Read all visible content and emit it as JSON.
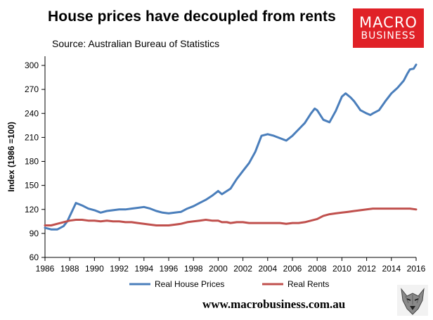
{
  "header": {
    "title": "House prices have decoupled from rents",
    "subtitle": "Source: Australian Bureau of Statistics"
  },
  "logo": {
    "line1": "MACRO",
    "line2": "BUSINESS"
  },
  "footer": {
    "url": "www.macrobusiness.com.au",
    "mascot_icon": "wolf-icon"
  },
  "colors": {
    "house": "#4a7ebb",
    "rents": "#c0504d",
    "axis": "#000000",
    "logo_bg": "#e02127"
  },
  "chart_data": {
    "type": "line",
    "title": "House prices have decoupled from rents",
    "xlabel": "",
    "ylabel": "Index (1986 =100)",
    "xlim": [
      1986,
      2016
    ],
    "ylim": [
      60,
      310
    ],
    "xticks": [
      1986,
      1988,
      1990,
      1992,
      1994,
      1996,
      1998,
      2000,
      2002,
      2004,
      2006,
      2008,
      2010,
      2012,
      2014,
      2016
    ],
    "yticks": [
      60,
      90,
      120,
      150,
      180,
      210,
      240,
      270,
      300
    ],
    "grid": false,
    "legend_position": "bottom",
    "series": [
      {
        "name": "Real House Prices",
        "color": "#4a7ebb",
        "points": [
          [
            1986.0,
            97
          ],
          [
            1986.5,
            95
          ],
          [
            1987.0,
            95
          ],
          [
            1987.5,
            99
          ],
          [
            1987.8,
            105
          ],
          [
            1988.2,
            118
          ],
          [
            1988.5,
            128
          ],
          [
            1989.0,
            125
          ],
          [
            1989.5,
            121
          ],
          [
            1990.0,
            119
          ],
          [
            1990.5,
            116
          ],
          [
            1991.0,
            118
          ],
          [
            1991.5,
            119
          ],
          [
            1992.0,
            120
          ],
          [
            1992.5,
            120
          ],
          [
            1993.0,
            121
          ],
          [
            1993.5,
            122
          ],
          [
            1994.0,
            123
          ],
          [
            1994.5,
            121
          ],
          [
            1995.0,
            118
          ],
          [
            1995.5,
            116
          ],
          [
            1996.0,
            115
          ],
          [
            1996.5,
            116
          ],
          [
            1997.0,
            117
          ],
          [
            1997.5,
            121
          ],
          [
            1998.0,
            124
          ],
          [
            1998.5,
            128
          ],
          [
            1999.0,
            132
          ],
          [
            1999.5,
            137
          ],
          [
            2000.0,
            143
          ],
          [
            2000.3,
            139
          ],
          [
            2000.7,
            143
          ],
          [
            2001.0,
            146
          ],
          [
            2001.5,
            158
          ],
          [
            2002.0,
            168
          ],
          [
            2002.5,
            178
          ],
          [
            2003.0,
            192
          ],
          [
            2003.5,
            212
          ],
          [
            2004.0,
            214
          ],
          [
            2004.5,
            212
          ],
          [
            2005.0,
            209
          ],
          [
            2005.5,
            206
          ],
          [
            2006.0,
            212
          ],
          [
            2006.5,
            220
          ],
          [
            2007.0,
            228
          ],
          [
            2007.5,
            240
          ],
          [
            2007.8,
            246
          ],
          [
            2008.0,
            244
          ],
          [
            2008.5,
            232
          ],
          [
            2009.0,
            229
          ],
          [
            2009.5,
            243
          ],
          [
            2010.0,
            261
          ],
          [
            2010.3,
            265
          ],
          [
            2010.7,
            260
          ],
          [
            2011.0,
            255
          ],
          [
            2011.5,
            244
          ],
          [
            2012.0,
            240
          ],
          [
            2012.3,
            238
          ],
          [
            2012.5,
            240
          ],
          [
            2013.0,
            244
          ],
          [
            2013.5,
            255
          ],
          [
            2014.0,
            265
          ],
          [
            2014.5,
            272
          ],
          [
            2015.0,
            281
          ],
          [
            2015.3,
            290
          ],
          [
            2015.5,
            295
          ],
          [
            2015.8,
            296
          ],
          [
            2016.0,
            301
          ]
        ]
      },
      {
        "name": "Real Rents",
        "color": "#c0504d",
        "points": [
          [
            1986.0,
            100
          ],
          [
            1986.5,
            100
          ],
          [
            1987.0,
            102
          ],
          [
            1987.5,
            104
          ],
          [
            1988.0,
            106
          ],
          [
            1988.5,
            107
          ],
          [
            1989.0,
            107
          ],
          [
            1989.5,
            106
          ],
          [
            1990.0,
            106
          ],
          [
            1990.5,
            105
          ],
          [
            1991.0,
            106
          ],
          [
            1991.5,
            105
          ],
          [
            1992.0,
            105
          ],
          [
            1992.5,
            104
          ],
          [
            1993.0,
            104
          ],
          [
            1993.5,
            103
          ],
          [
            1994.0,
            102
          ],
          [
            1994.5,
            101
          ],
          [
            1995.0,
            100
          ],
          [
            1995.5,
            100
          ],
          [
            1996.0,
            100
          ],
          [
            1996.5,
            101
          ],
          [
            1997.0,
            102
          ],
          [
            1997.5,
            104
          ],
          [
            1998.0,
            105
          ],
          [
            1998.5,
            106
          ],
          [
            1999.0,
            107
          ],
          [
            1999.5,
            106
          ],
          [
            2000.0,
            106
          ],
          [
            2000.3,
            104
          ],
          [
            2000.7,
            104
          ],
          [
            2001.0,
            103
          ],
          [
            2001.5,
            104
          ],
          [
            2002.0,
            104
          ],
          [
            2002.5,
            103
          ],
          [
            2003.0,
            103
          ],
          [
            2003.5,
            103
          ],
          [
            2004.0,
            103
          ],
          [
            2004.5,
            103
          ],
          [
            2005.0,
            103
          ],
          [
            2005.5,
            102
          ],
          [
            2006.0,
            103
          ],
          [
            2006.5,
            103
          ],
          [
            2007.0,
            104
          ],
          [
            2007.5,
            106
          ],
          [
            2008.0,
            108
          ],
          [
            2008.5,
            112
          ],
          [
            2009.0,
            114
          ],
          [
            2009.5,
            115
          ],
          [
            2010.0,
            116
          ],
          [
            2010.5,
            117
          ],
          [
            2011.0,
            118
          ],
          [
            2011.5,
            119
          ],
          [
            2012.0,
            120
          ],
          [
            2012.5,
            121
          ],
          [
            2013.0,
            121
          ],
          [
            2013.5,
            121
          ],
          [
            2014.0,
            121
          ],
          [
            2014.5,
            121
          ],
          [
            2015.0,
            121
          ],
          [
            2015.5,
            121
          ],
          [
            2016.0,
            120
          ]
        ]
      }
    ]
  }
}
